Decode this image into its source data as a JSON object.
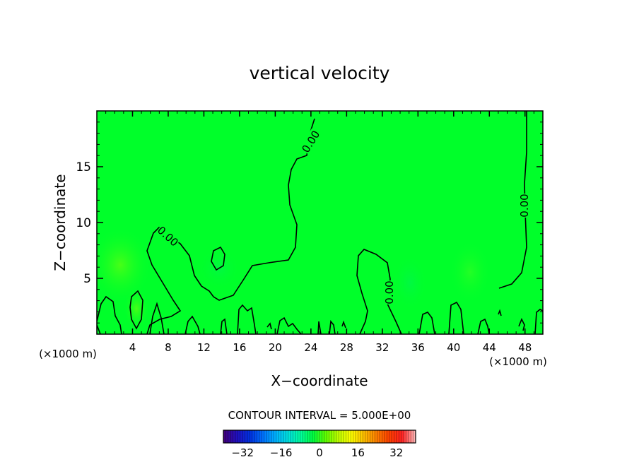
{
  "chart_data": {
    "type": "contour",
    "title": "vertical velocity",
    "xlabel": "X−coordinate",
    "ylabel": "Z−coordinate",
    "x_unit": "(×1000 m)",
    "z_unit": "(×1000 m)",
    "x_ticks": [
      "4",
      "8",
      "12",
      "16",
      "20",
      "24",
      "28",
      "32",
      "36",
      "40",
      "44",
      "48"
    ],
    "z_ticks": [
      "5",
      "10",
      "15"
    ],
    "xlim": [
      0,
      50
    ],
    "zlim": [
      0,
      20
    ],
    "contour_levels": [
      {
        "label": "0.00"
      },
      {
        "label": "0.00"
      },
      {
        "label": "0.00"
      },
      {
        "label": "0.00"
      }
    ],
    "contour_interval_text": "CONTOUR INTERVAL = 5.000E+00",
    "colorbar": {
      "tick_labels": [
        "−32",
        "−16",
        "0",
        "16",
        "32"
      ],
      "range": [
        -40,
        40
      ],
      "colors": [
        "#40007f",
        "#2010c0",
        "#0030e0",
        "#0070ff",
        "#00b0ff",
        "#00e0e0",
        "#00ffa0",
        "#00ff40",
        "#60ff00",
        "#c0ff00",
        "#ffff00",
        "#ffc000",
        "#ff8000",
        "#ff4000",
        "#ff2020",
        "#ffb0b0"
      ]
    },
    "field_color": "#00ff2a",
    "line_color": "#000000"
  }
}
